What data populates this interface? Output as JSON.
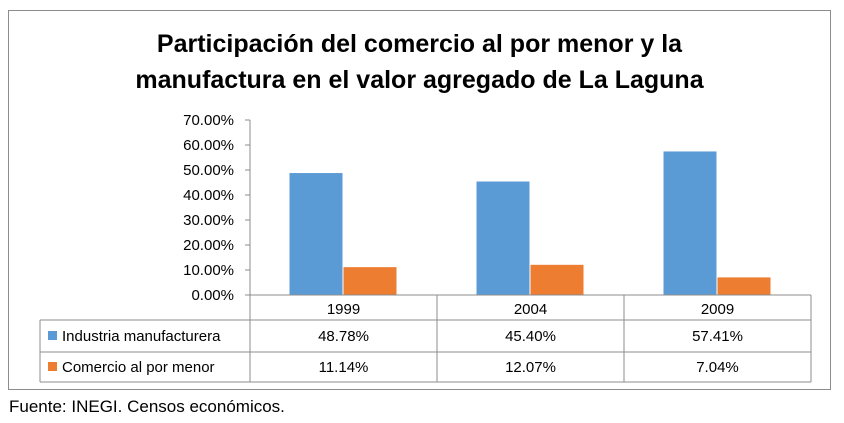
{
  "chart_data": {
    "type": "bar",
    "title_line1": "Participación del comercio al por menor y la",
    "title_line2": "manufactura en el valor agregado de La Laguna",
    "categories": [
      "1999",
      "2004",
      "2009"
    ],
    "series": [
      {
        "name": "Industria manufacturera",
        "color": "#5b9bd5",
        "values": [
          48.78,
          45.4,
          57.41
        ],
        "labels": [
          "48.78%",
          "45.40%",
          "57.41%"
        ]
      },
      {
        "name": "Comercio al por menor",
        "color": "#ed7d31",
        "values": [
          11.14,
          12.07,
          7.04
        ],
        "labels": [
          "11.14%",
          "12.07%",
          "7.04%"
        ]
      }
    ],
    "ylim": [
      0,
      70
    ],
    "yticks": [
      "0.00%",
      "10.00%",
      "20.00%",
      "30.00%",
      "40.00%",
      "50.00%",
      "60.00%",
      "70.00%"
    ],
    "grid": false,
    "legend": "data-table"
  },
  "source_note": "Fuente: INEGI. Censos económicos."
}
